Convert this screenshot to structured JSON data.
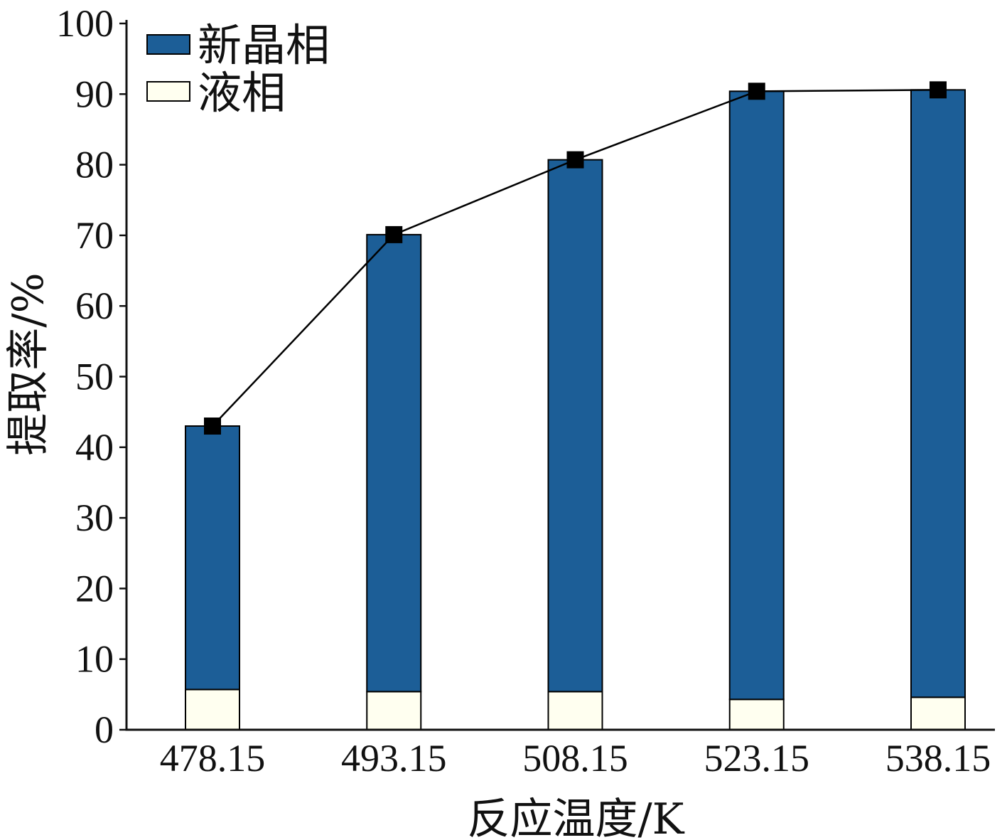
{
  "chart_data": {
    "type": "bar",
    "stacked": true,
    "categories": [
      "478.15",
      "493.15",
      "508.15",
      "523.15",
      "538.15"
    ],
    "series": [
      {
        "name": "新晶相",
        "values": [
          37.3,
          64.7,
          75.3,
          86.1,
          86.0
        ],
        "color": "#1c5e97"
      },
      {
        "name": "液相",
        "values": [
          5.7,
          5.4,
          5.4,
          4.3,
          4.6
        ],
        "color": "#fffff0"
      }
    ],
    "line_series": [
      {
        "values": [
          43.0,
          70.1,
          80.7,
          90.4,
          90.6
        ],
        "marker": "square",
        "color": "#000000"
      }
    ],
    "xlabel": "反应温度/K",
    "ylabel": "提取率/%",
    "ylim": [
      0,
      100
    ],
    "yticks": [
      0,
      10,
      20,
      30,
      40,
      50,
      60,
      70,
      80,
      90,
      100
    ],
    "grid": false,
    "legend": "top-left"
  }
}
